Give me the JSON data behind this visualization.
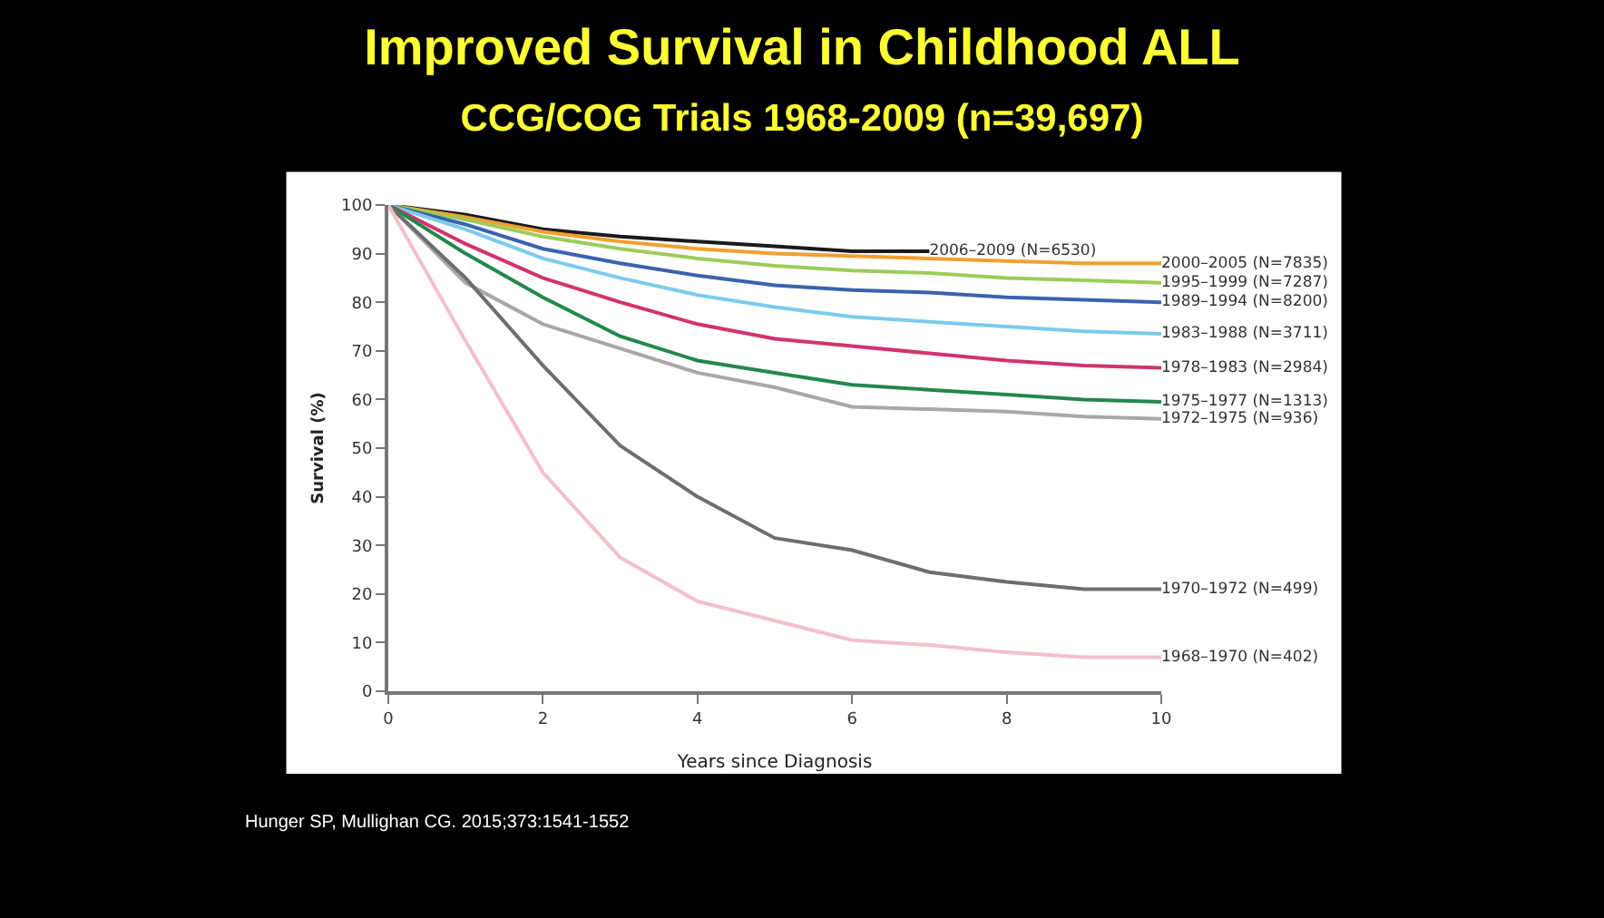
{
  "chart_data": {
    "type": "line",
    "title": "Improved Survival in Childhood ALL",
    "subtitle": "CCG/COG Trials 1968-2009 (n=39,697)",
    "xlabel": "Years since Diagnosis",
    "ylabel": "Survival (%)",
    "xlim": [
      0,
      10
    ],
    "xticks": [
      0,
      2,
      4,
      6,
      8,
      10
    ],
    "ylim": [
      0,
      100
    ],
    "yticks": [
      0,
      10,
      20,
      30,
      40,
      50,
      60,
      70,
      80,
      90,
      100
    ],
    "legend": false,
    "marker": "none",
    "line_style": "solid",
    "annotations": [
      "Hunger SP, Mullighan CG. 2015;373:1541-1552"
    ],
    "series": [
      {
        "name": "2006–2009 (N=6530)",
        "color": "#1a1a1a",
        "x": [
          0,
          1,
          2,
          3,
          4,
          5,
          6,
          7
        ],
        "values": [
          100,
          98,
          95,
          93.5,
          92.5,
          91.5,
          90.5,
          90.5
        ]
      },
      {
        "name": "2000–2005 (N=7835)",
        "color": "#f0a030",
        "x": [
          0,
          1,
          2,
          3,
          4,
          5,
          6,
          7,
          8,
          9,
          10
        ],
        "values": [
          100,
          97.5,
          94.5,
          92.5,
          91,
          90,
          89.5,
          89,
          88.5,
          88,
          88
        ]
      },
      {
        "name": "1995–1999 (N=7287)",
        "color": "#9ccc5a",
        "x": [
          0,
          1,
          2,
          3,
          4,
          5,
          6,
          7,
          8,
          9,
          10
        ],
        "values": [
          100,
          97,
          93.5,
          91,
          89,
          87.5,
          86.5,
          86,
          85,
          84.5,
          84
        ]
      },
      {
        "name": "1989–1994 (N=8200)",
        "color": "#3a62b0",
        "x": [
          0,
          1,
          2,
          3,
          4,
          5,
          6,
          7,
          8,
          9,
          10
        ],
        "values": [
          100,
          96,
          91,
          88,
          85.5,
          83.5,
          82.5,
          82,
          81,
          80.5,
          80
        ]
      },
      {
        "name": "1983–1988 (N=3711)",
        "color": "#7ccbec",
        "x": [
          0,
          1,
          2,
          3,
          4,
          5,
          6,
          7,
          8,
          9,
          10
        ],
        "values": [
          100,
          95,
          89,
          85,
          81.5,
          79,
          77,
          76,
          75,
          74,
          73.5
        ]
      },
      {
        "name": "1978–1983 (N=2984)",
        "color": "#d2336e",
        "x": [
          0,
          1,
          2,
          3,
          4,
          5,
          6,
          7,
          8,
          9,
          10
        ],
        "values": [
          100,
          92,
          85,
          80,
          75.5,
          72.5,
          71,
          69.5,
          68,
          67,
          66.5
        ]
      },
      {
        "name": "1975–1977 (N=1313)",
        "color": "#22884a",
        "x": [
          0,
          1,
          2,
          3,
          4,
          5,
          6,
          7,
          8,
          9,
          10
        ],
        "values": [
          100,
          90,
          81,
          73,
          68,
          65.5,
          63,
          62,
          61,
          60,
          59.5
        ]
      },
      {
        "name": "1972–1975 (N=936)",
        "color": "#a8a8a8",
        "x": [
          0,
          1,
          2,
          3,
          4,
          5,
          6,
          7,
          8,
          9,
          10
        ],
        "values": [
          100,
          84,
          75.5,
          70.5,
          65.5,
          62.5,
          58.5,
          58,
          57.5,
          56.5,
          56
        ]
      },
      {
        "name": "1970–1972 (N=499)",
        "color": "#6e6e6e",
        "x": [
          0,
          1,
          2,
          3,
          4,
          5,
          6,
          7,
          8,
          9,
          10
        ],
        "values": [
          100,
          85,
          67,
          50.5,
          40,
          31.5,
          29,
          24.5,
          22.5,
          21,
          21
        ]
      },
      {
        "name": "1968–1970 (N=402)",
        "color": "#f4bfcc",
        "x": [
          0,
          1,
          2,
          3,
          4,
          5,
          6,
          7,
          8,
          9,
          10
        ],
        "values": [
          100,
          72,
          45,
          27.5,
          18.5,
          14.5,
          10.5,
          9.5,
          8,
          7,
          7
        ]
      }
    ]
  }
}
